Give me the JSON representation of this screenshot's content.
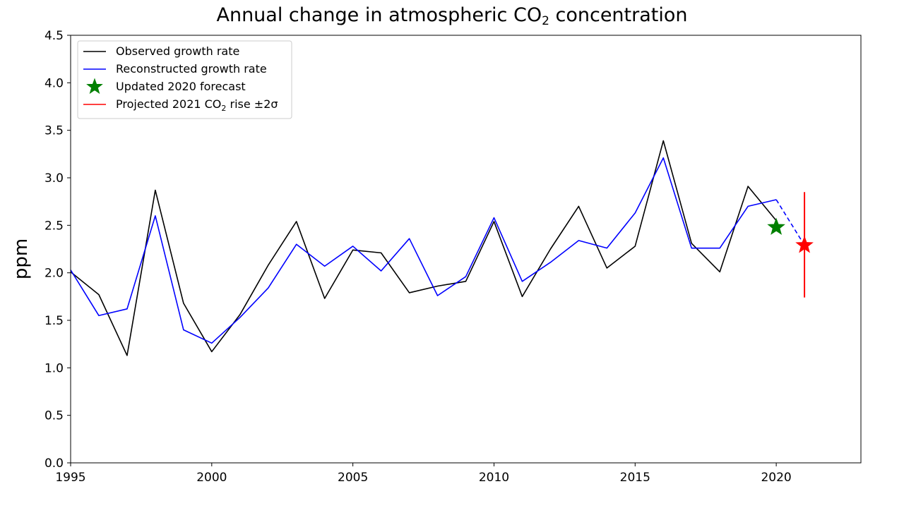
{
  "chart_data": {
    "type": "line",
    "title": {
      "main": "Annual change in atmospheric CO",
      "subscript": "2",
      "suffix": " concentration"
    },
    "xlabel": "",
    "ylabel": "ppm",
    "xlim": [
      1995,
      2023
    ],
    "ylim": [
      0.0,
      4.5
    ],
    "xticks": [
      1995,
      2000,
      2005,
      2010,
      2015,
      2020
    ],
    "yticks": [
      0.0,
      0.5,
      1.0,
      1.5,
      2.0,
      2.5,
      3.0,
      3.5,
      4.0,
      4.5
    ],
    "ytick_labels": [
      "0.0",
      "0.5",
      "1.0",
      "1.5",
      "2.0",
      "2.5",
      "3.0",
      "3.5",
      "4.0",
      "4.5"
    ],
    "grid": false,
    "legend_position": "top-left",
    "series": [
      {
        "name": "Observed growth rate",
        "color": "#000000",
        "style": "solid",
        "x": [
          1995,
          1996,
          1997,
          1998,
          1999,
          2000,
          2001,
          2002,
          2003,
          2004,
          2005,
          2006,
          2007,
          2008,
          2009,
          2010,
          2011,
          2012,
          2013,
          2014,
          2015,
          2016,
          2017,
          2018,
          2019,
          2020
        ],
        "y": [
          2.01,
          1.77,
          1.13,
          2.87,
          1.68,
          1.17,
          1.56,
          2.08,
          2.54,
          1.73,
          2.24,
          2.21,
          1.79,
          1.86,
          1.91,
          2.54,
          1.75,
          2.25,
          2.7,
          2.05,
          2.28,
          3.39,
          2.31,
          2.01,
          2.91,
          2.55
        ]
      },
      {
        "name": "Reconstructed growth rate",
        "color": "#0000ff",
        "style": "solid",
        "x": [
          1995,
          1996,
          1997,
          1998,
          1999,
          2000,
          2001,
          2002,
          2003,
          2004,
          2005,
          2006,
          2007,
          2008,
          2009,
          2010,
          2011,
          2012,
          2013,
          2014,
          2015,
          2016,
          2017,
          2018,
          2019,
          2020
        ],
        "y": [
          2.03,
          1.55,
          1.62,
          2.6,
          1.4,
          1.26,
          1.53,
          1.84,
          2.3,
          2.07,
          2.28,
          2.02,
          2.36,
          1.76,
          1.96,
          2.58,
          1.91,
          2.11,
          2.34,
          2.26,
          2.63,
          3.21,
          2.26,
          2.26,
          2.7,
          2.77
        ]
      },
      {
        "name": "",
        "color": "#0000ff",
        "style": "dashed",
        "x": [
          2020,
          2021
        ],
        "y": [
          2.77,
          2.29
        ]
      }
    ],
    "markers": [
      {
        "name": "Updated 2020 forecast",
        "color": "#008000",
        "shape": "star",
        "x": 2020,
        "y": 2.48
      },
      {
        "name": "",
        "color": "#ff0000",
        "shape": "star",
        "x": 2021,
        "y": 2.29
      }
    ],
    "error_bars": [
      {
        "name": "Projected 2021 CO2 rise ±2σ",
        "color": "#ff0000",
        "x": 2021,
        "y_low": 1.74,
        "y_high": 2.85
      }
    ],
    "legend": [
      {
        "label": "Observed growth rate",
        "color": "#000000",
        "kind": "line"
      },
      {
        "label": "Reconstructed growth rate",
        "color": "#0000ff",
        "kind": "line"
      },
      {
        "label": "Updated 2020 forecast",
        "color": "#008000",
        "kind": "star"
      },
      {
        "label_main": "Projected 2021 CO",
        "label_sub": "2",
        "label_suffix": " rise ±2σ",
        "color": "#ff0000",
        "kind": "line"
      }
    ]
  }
}
